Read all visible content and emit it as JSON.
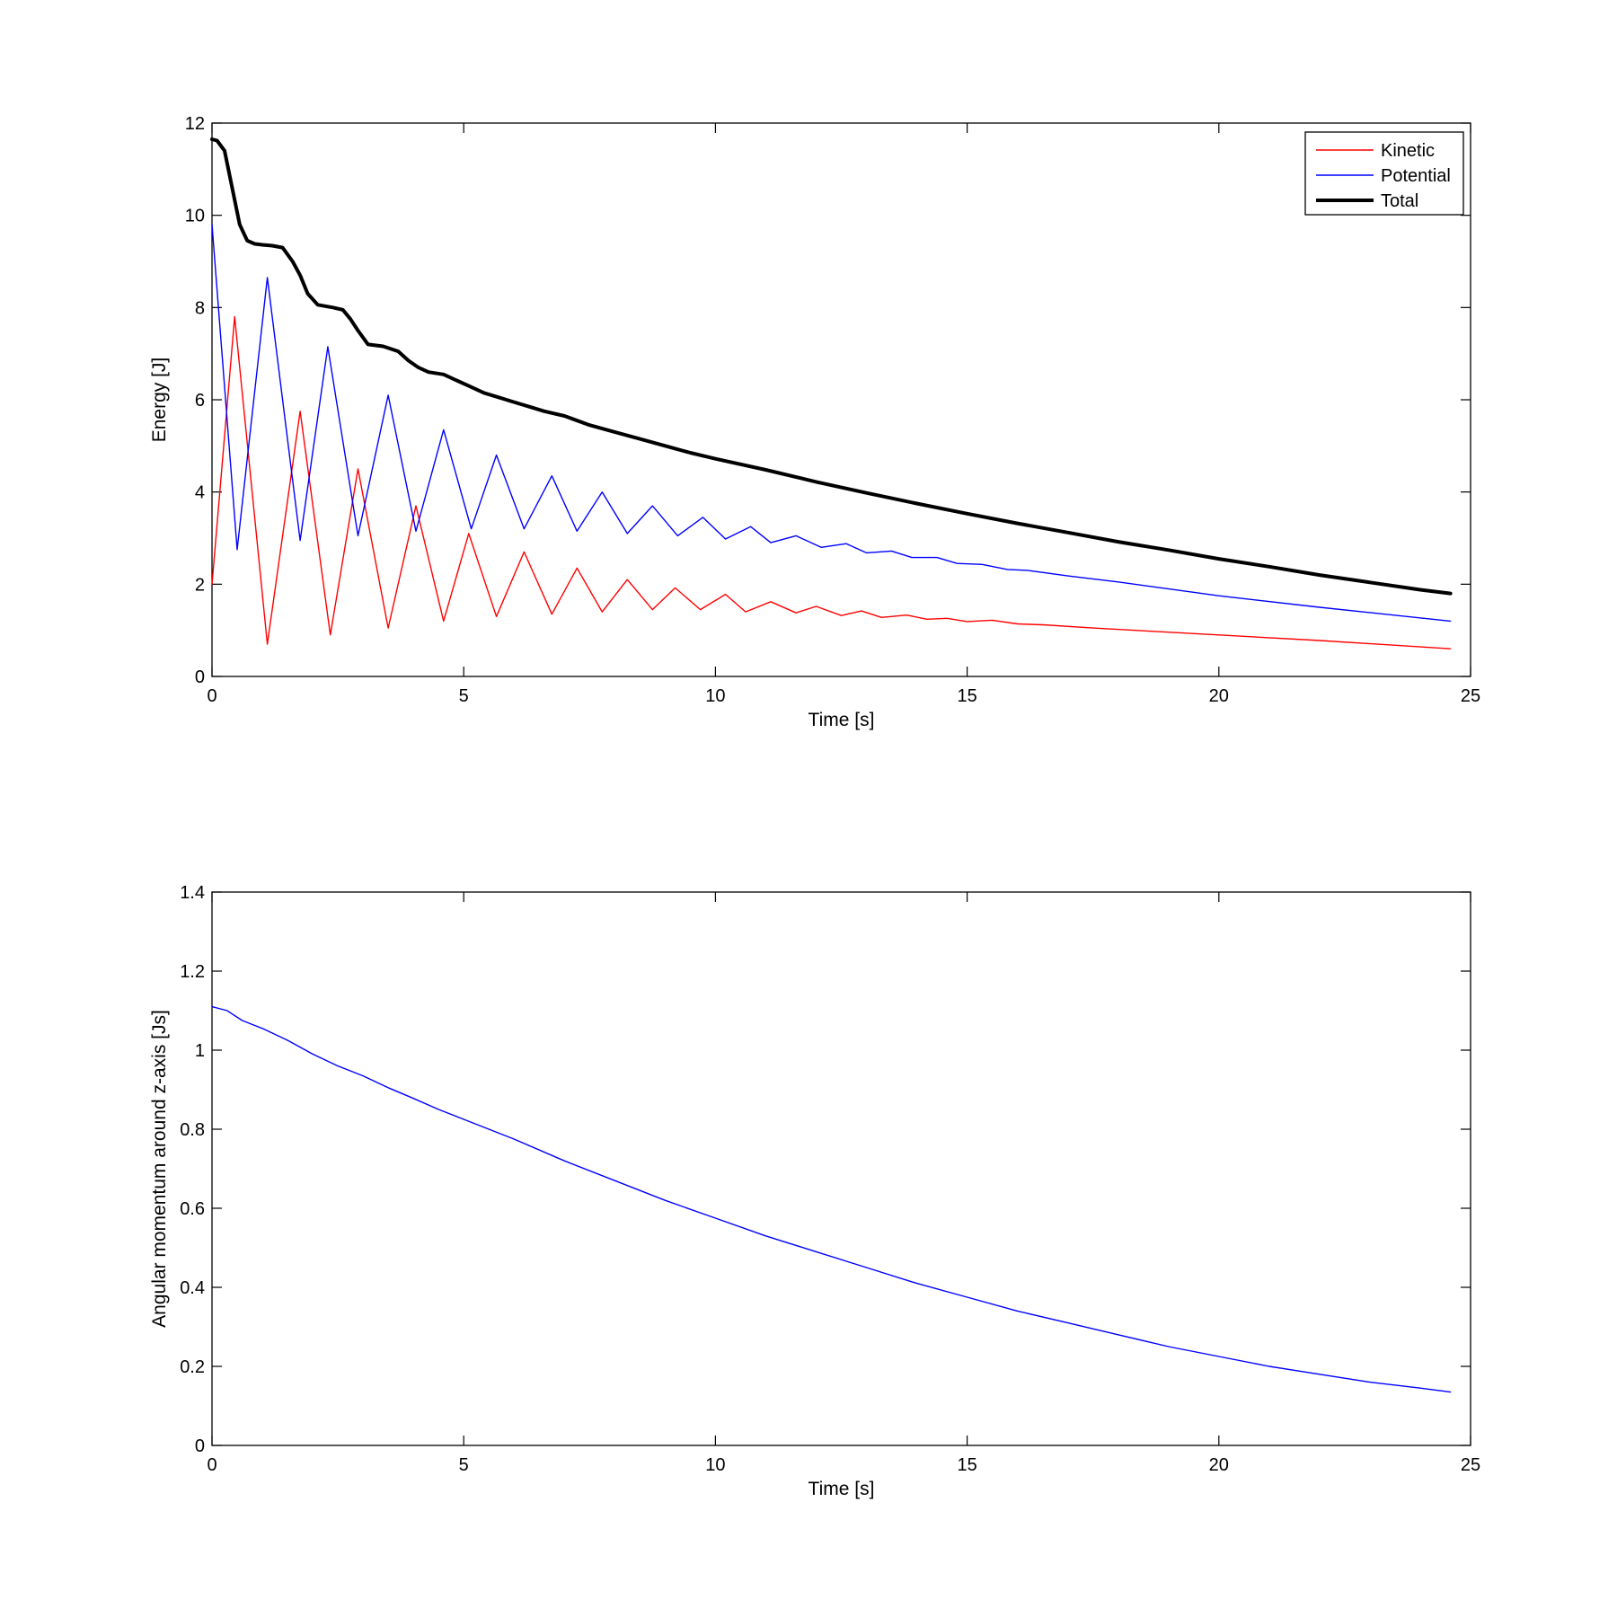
{
  "chart_data": [
    {
      "type": "line",
      "xlabel": "Time [s]",
      "ylabel": "Energy [J]",
      "xlim": [
        0,
        25
      ],
      "ylim": [
        0,
        12
      ],
      "xticks": [
        "0",
        "5",
        "10",
        "15",
        "20",
        "25"
      ],
      "yticks": [
        "0",
        "2",
        "4",
        "6",
        "8",
        "10",
        "12"
      ],
      "grid": false,
      "legend": {
        "position": "top-right",
        "entries": [
          "Kinetic",
          "Potential",
          "Total"
        ]
      },
      "series": [
        {
          "name": "Kinetic",
          "color": "#ff0000",
          "x": [
            0,
            0.45,
            1.1,
            1.75,
            2.35,
            2.9,
            3.5,
            4.05,
            4.6,
            5.1,
            5.65,
            6.2,
            6.75,
            7.25,
            7.75,
            8.25,
            8.75,
            9.2,
            9.7,
            10.2,
            10.6,
            11.1,
            11.6,
            12.0,
            12.5,
            12.9,
            13.3,
            13.8,
            14.2,
            14.6,
            15.0,
            15.5,
            16.0,
            16.5,
            17.5,
            18.5,
            20.0,
            22.0,
            24.6
          ],
          "y": [
            2.0,
            7.8,
            0.7,
            5.75,
            0.9,
            4.5,
            1.05,
            3.7,
            1.2,
            3.1,
            1.3,
            2.7,
            1.35,
            2.35,
            1.4,
            2.1,
            1.45,
            1.92,
            1.45,
            1.78,
            1.4,
            1.62,
            1.38,
            1.52,
            1.32,
            1.42,
            1.28,
            1.33,
            1.24,
            1.26,
            1.19,
            1.22,
            1.14,
            1.12,
            1.05,
            0.99,
            0.9,
            0.78,
            0.6
          ]
        },
        {
          "name": "Potential",
          "color": "#0000ff",
          "x": [
            0,
            0.5,
            1.1,
            1.75,
            2.3,
            2.9,
            3.5,
            4.05,
            4.6,
            5.15,
            5.65,
            6.2,
            6.75,
            7.25,
            7.75,
            8.25,
            8.75,
            9.25,
            9.75,
            10.2,
            10.7,
            11.1,
            11.6,
            12.1,
            12.6,
            13.0,
            13.5,
            13.9,
            14.4,
            14.8,
            15.3,
            15.8,
            16.2,
            17.0,
            18.0,
            20.0,
            22.0,
            24.6
          ],
          "y": [
            9.8,
            2.75,
            8.65,
            2.95,
            7.15,
            3.05,
            6.1,
            3.15,
            5.35,
            3.2,
            4.8,
            3.2,
            4.35,
            3.15,
            4.0,
            3.1,
            3.7,
            3.05,
            3.45,
            2.98,
            3.25,
            2.9,
            3.05,
            2.8,
            2.88,
            2.68,
            2.72,
            2.58,
            2.58,
            2.45,
            2.43,
            2.32,
            2.3,
            2.18,
            2.05,
            1.75,
            1.5,
            1.2
          ]
        },
        {
          "name": "Total",
          "color": "#000000",
          "x": [
            0,
            0.1,
            0.25,
            0.4,
            0.55,
            0.7,
            0.85,
            1.0,
            1.2,
            1.4,
            1.6,
            1.75,
            1.9,
            2.1,
            2.4,
            2.6,
            2.75,
            2.9,
            3.1,
            3.4,
            3.7,
            3.9,
            4.1,
            4.3,
            4.6,
            4.9,
            5.1,
            5.4,
            5.7,
            6.0,
            6.3,
            6.6,
            7.0,
            7.5,
            8.0,
            8.5,
            9.0,
            9.5,
            10.0,
            11.0,
            12.0,
            13.0,
            14.0,
            15.0,
            16.0,
            17.0,
            18.0,
            19.0,
            20.0,
            21.0,
            22.0,
            23.0,
            24.0,
            24.6
          ],
          "y": [
            11.65,
            11.62,
            11.4,
            10.6,
            9.8,
            9.45,
            9.38,
            9.36,
            9.34,
            9.3,
            9.0,
            8.7,
            8.3,
            8.06,
            8.0,
            7.95,
            7.75,
            7.5,
            7.2,
            7.16,
            7.05,
            6.85,
            6.7,
            6.6,
            6.55,
            6.4,
            6.3,
            6.15,
            6.05,
            5.95,
            5.85,
            5.75,
            5.65,
            5.45,
            5.3,
            5.15,
            5.0,
            4.85,
            4.72,
            4.48,
            4.22,
            3.98,
            3.75,
            3.53,
            3.32,
            3.12,
            2.92,
            2.74,
            2.55,
            2.38,
            2.2,
            2.04,
            1.88,
            1.8
          ]
        }
      ]
    },
    {
      "type": "line",
      "xlabel": "Time [s]",
      "ylabel": "Angular momentum around z-axis [Js]",
      "xlim": [
        0,
        25
      ],
      "ylim": [
        0,
        1.4
      ],
      "xticks": [
        "0",
        "5",
        "10",
        "15",
        "20",
        "25"
      ],
      "yticks": [
        "0",
        "0.2",
        "0.4",
        "0.6",
        "0.8",
        "1",
        "1.2",
        "1.4"
      ],
      "grid": false,
      "series": [
        {
          "color": "#0000ff",
          "x": [
            0,
            0.3,
            0.6,
            1.0,
            1.5,
            2.0,
            2.5,
            3.0,
            3.5,
            4.0,
            4.5,
            5.0,
            6.0,
            7.0,
            8.0,
            9.0,
            10.0,
            11.0,
            12.0,
            13.0,
            14.0,
            15.0,
            16.0,
            17.0,
            18.0,
            19.0,
            20.0,
            21.0,
            22.0,
            23.0,
            24.0,
            24.6
          ],
          "y": [
            1.11,
            1.1,
            1.075,
            1.055,
            1.025,
            0.99,
            0.96,
            0.935,
            0.905,
            0.878,
            0.85,
            0.825,
            0.775,
            0.72,
            0.67,
            0.62,
            0.575,
            0.53,
            0.49,
            0.45,
            0.41,
            0.375,
            0.34,
            0.31,
            0.28,
            0.25,
            0.225,
            0.2,
            0.18,
            0.16,
            0.145,
            0.135
          ]
        }
      ]
    }
  ]
}
